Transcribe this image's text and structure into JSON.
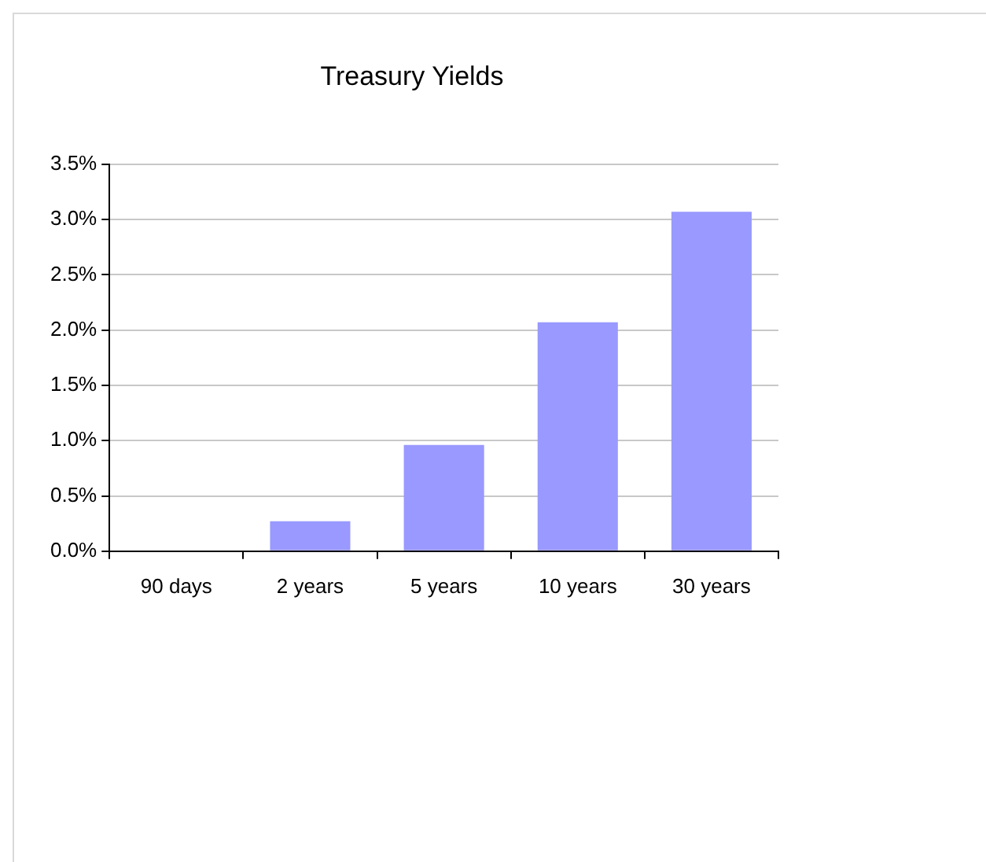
{
  "chart_data": {
    "type": "bar",
    "title": "Treasury Yields",
    "categories": [
      "90 days",
      "2 years",
      "5 years",
      "10 years",
      "30 years"
    ],
    "values": [
      0,
      0.27,
      0.96,
      2.07,
      3.07
    ],
    "color": "#9999ff",
    "ylim": [
      0,
      3.5
    ],
    "yticks": [
      {
        "value": 0,
        "label": "0.0%"
      },
      {
        "value": 0.5,
        "label": "0.5%"
      },
      {
        "value": 1,
        "label": "1.0%"
      },
      {
        "value": 1.5,
        "label": "1.5%"
      },
      {
        "value": 2,
        "label": "2.0%"
      },
      {
        "value": 2.5,
        "label": "2.5%"
      },
      {
        "value": 3,
        "label": "3.0%"
      },
      {
        "value": 3.5,
        "label": "3.5%"
      }
    ],
    "grid": "y",
    "legend": false
  }
}
